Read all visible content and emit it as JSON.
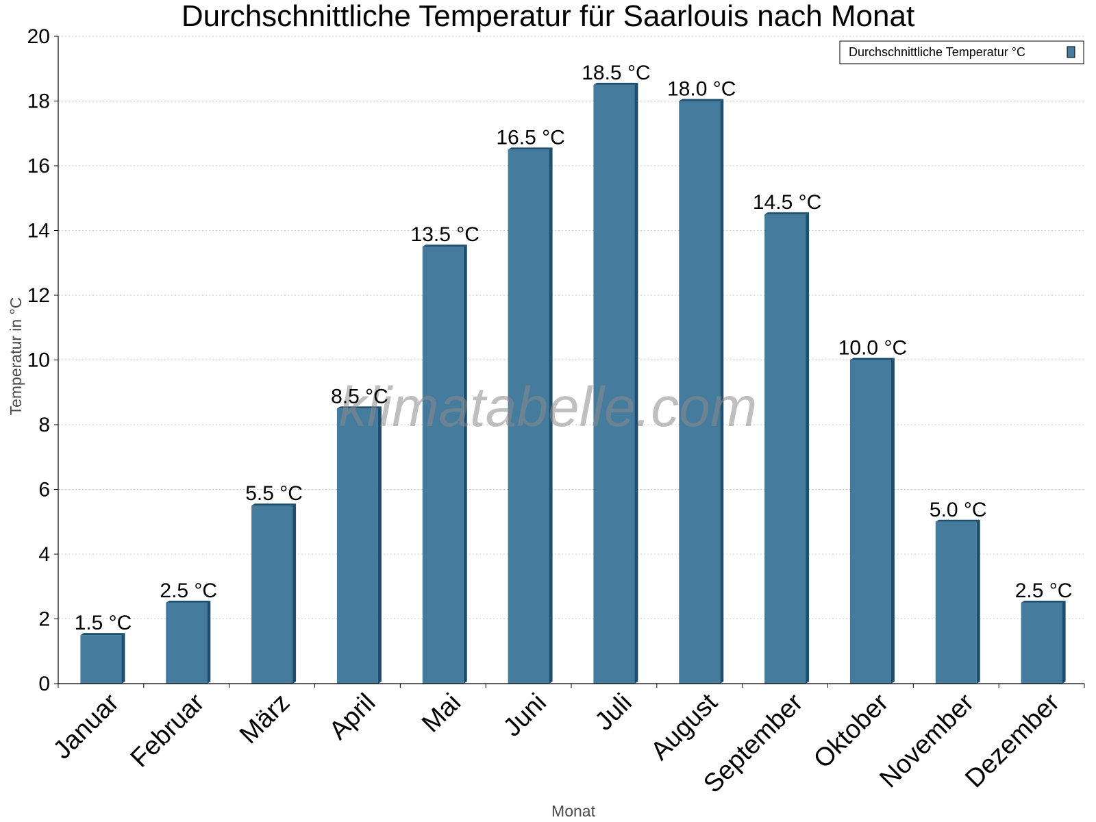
{
  "chart_data": {
    "type": "bar",
    "title": "Durchschnittliche Temperatur für Saarlouis nach Monat",
    "xlabel": "Monat",
    "ylabel": "Temperatur in °C",
    "ylim": [
      0,
      20
    ],
    "yticks": [
      "0",
      "2",
      "4",
      "6",
      "8",
      "10",
      "12",
      "14",
      "16",
      "18",
      "20"
    ],
    "grid": true,
    "legend_position": "top-right",
    "categories": [
      "Januar",
      "Februar",
      "März",
      "April",
      "Mai",
      "Juni",
      "Juli",
      "August",
      "September",
      "Oktober",
      "November",
      "Dezember"
    ],
    "series": [
      {
        "name": "Durchschnittliche Temperatur °C",
        "values": [
          1.5,
          2.5,
          5.5,
          8.5,
          13.5,
          16.5,
          18.5,
          18.0,
          14.5,
          10.0,
          5.0,
          2.5
        ],
        "labels": [
          "1.5 °C",
          "2.5 °C",
          "5.5 °C",
          "8.5 °C",
          "13.5 °C",
          "16.5 °C",
          "18.5 °C",
          "18.0 °C",
          "14.5 °C",
          "10.0 °C",
          "5.0 °C",
          "2.5 °C"
        ],
        "color": "#457b9d",
        "shade_color": "#1d4e6e"
      }
    ],
    "watermark": "klimatabelle.com"
  }
}
